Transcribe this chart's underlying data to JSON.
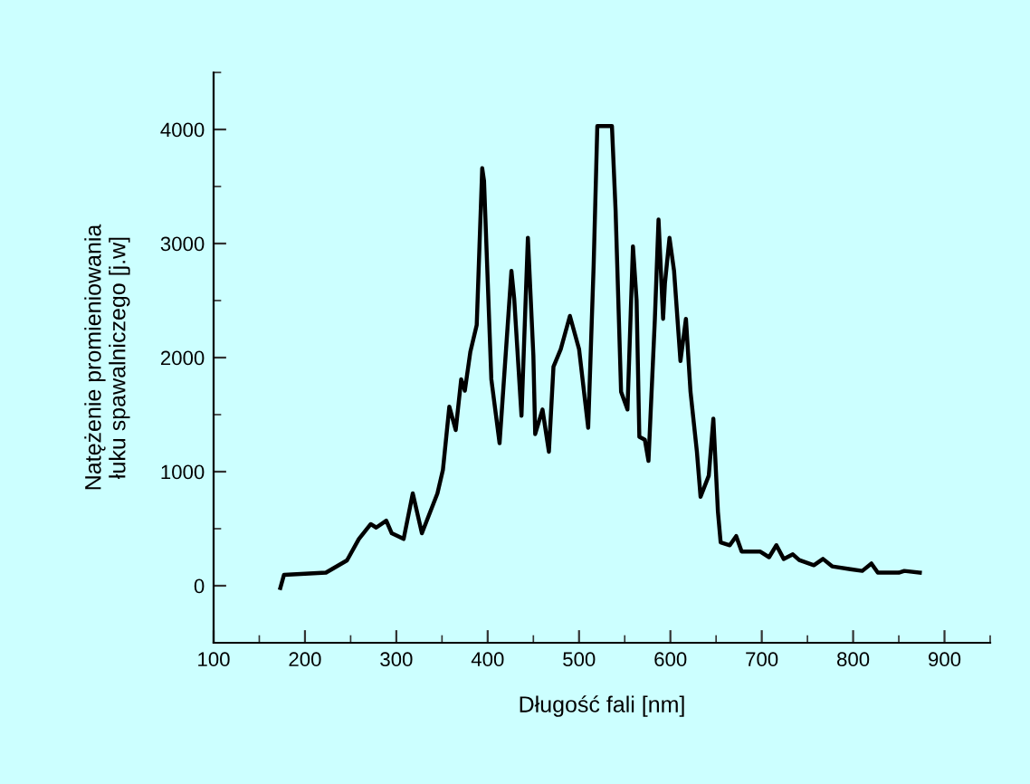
{
  "chart_data": {
    "type": "line",
    "xlabel": "Długość fali [nm]",
    "ylabel": "Natężenie promieniowania\nłuku spawalniczego [j.w]",
    "x": [
      173,
      177,
      223,
      246,
      259,
      272,
      278,
      289,
      295,
      308,
      318,
      328,
      345,
      351,
      358,
      365,
      371,
      375,
      381,
      388,
      391,
      394,
      396,
      404,
      413,
      415,
      426,
      429,
      437,
      444,
      450,
      452,
      460,
      467,
      472,
      480,
      490,
      500,
      510,
      516,
      520,
      536,
      540,
      546,
      553,
      559,
      563,
      566,
      572,
      576,
      583,
      587,
      592,
      594,
      599,
      604,
      611,
      617,
      622,
      629,
      633,
      642,
      647,
      652,
      655,
      665,
      672,
      678,
      698,
      708,
      716,
      724,
      734,
      741,
      757,
      767,
      777,
      797,
      810,
      820,
      827,
      850,
      856,
      873
    ],
    "series": [
      {
        "color": "#000000",
        "values": [
          -20,
          95,
          115,
          222,
          410,
          540,
          510,
          570,
          460,
          410,
          810,
          460,
          810,
          1015,
          1570,
          1365,
          1810,
          1710,
          2050,
          2285,
          2975,
          3660,
          3550,
          1810,
          1250,
          1480,
          2760,
          2520,
          1490,
          3050,
          2020,
          1330,
          1545,
          1175,
          1920,
          2075,
          2365,
          2075,
          1385,
          2815,
          4030,
          4030,
          3290,
          1700,
          1545,
          2975,
          2500,
          1305,
          1280,
          1095,
          2340,
          3210,
          2340,
          2650,
          3050,
          2760,
          1970,
          2340,
          1700,
          1175,
          780,
          965,
          1465,
          650,
          380,
          355,
          435,
          300,
          300,
          250,
          355,
          235,
          275,
          225,
          180,
          235,
          170,
          145,
          130,
          195,
          115,
          115,
          130,
          115
        ]
      }
    ],
    "xlim": [
      100,
      950
    ],
    "xticks": [
      100,
      200,
      300,
      400,
      500,
      600,
      700,
      800,
      900
    ],
    "ylim": [
      -500,
      4500
    ],
    "yticks": [
      0,
      1000,
      2000,
      3000,
      4000
    ],
    "grid": false,
    "legend": false
  }
}
